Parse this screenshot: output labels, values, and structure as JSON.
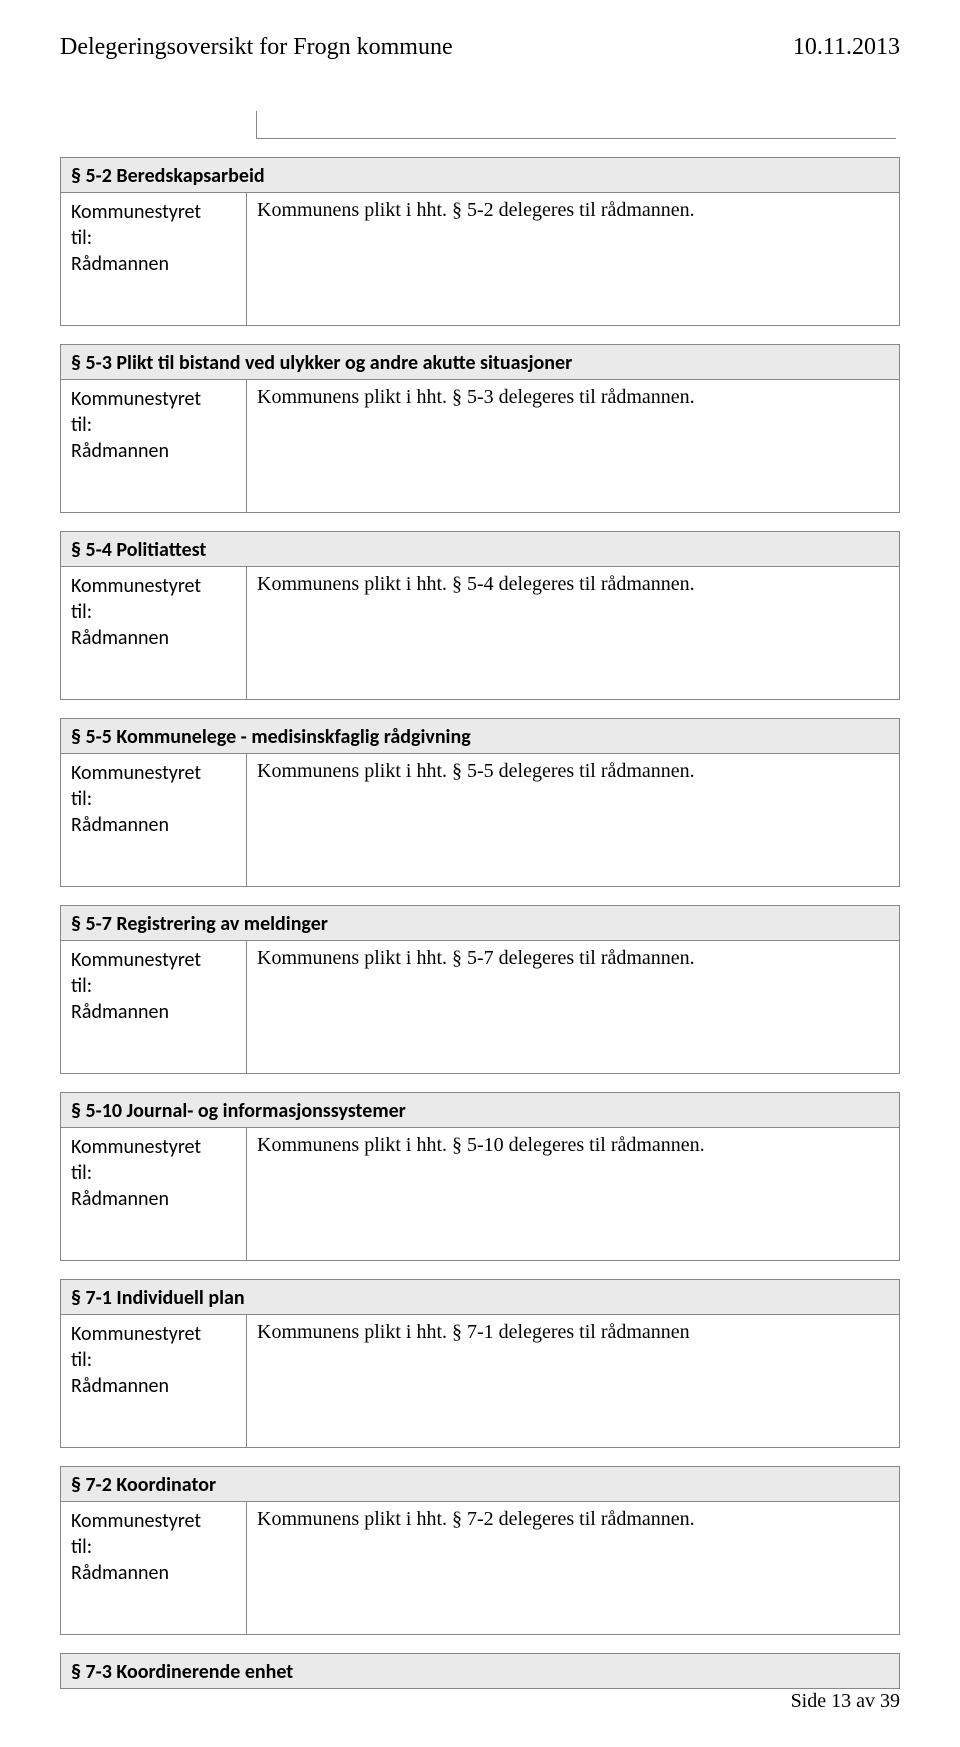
{
  "header": {
    "title": "Delegeringsoversikt for Frogn kommune",
    "date": "10.11.2013"
  },
  "sections": [
    {
      "title": "§ 5-2 Beredskapsarbeid",
      "from1": "Kommunestyret",
      "from2": "til:",
      "from3": "Rådmannen",
      "desc": "Kommunens plikt i hht. § 5-2 delegeres til rådmannen."
    },
    {
      "title": "§ 5-3 Plikt til bistand ved ulykker og andre akutte situasjoner",
      "from1": "Kommunestyret",
      "from2": "til:",
      "from3": "Rådmannen",
      "desc": "Kommunens plikt i hht. § 5-3 delegeres til rådmannen."
    },
    {
      "title": "§ 5-4 Politiattest",
      "from1": "Kommunestyret",
      "from2": "til:",
      "from3": "Rådmannen",
      "desc": "Kommunens plikt i hht. § 5-4 delegeres til rådmannen."
    },
    {
      "title": "§ 5-5 Kommunelege - medisinskfaglig rådgivning",
      "from1": "Kommunestyret",
      "from2": "til:",
      "from3": "Rådmannen",
      "desc": "Kommunens plikt i hht. § 5-5 delegeres til rådmannen."
    },
    {
      "title": "§ 5-7 Registrering av meldinger",
      "from1": "Kommunestyret",
      "from2": "til:",
      "from3": "Rådmannen",
      "desc": "Kommunens plikt i hht. § 5-7 delegeres til rådmannen."
    },
    {
      "title": "§ 5-10 Journal- og informasjonssystemer",
      "from1": "Kommunestyret",
      "from2": "til:",
      "from3": "Rådmannen",
      "desc": "Kommunens plikt i hht. § 5-10 delegeres til rådmannen."
    },
    {
      "title": "§ 7-1 Individuell plan",
      "from1": "Kommunestyret",
      "from2": "til:",
      "from3": "Rådmannen",
      "desc": "Kommunens plikt i hht. § 7-1 delegeres til rådmannen"
    },
    {
      "title": "§ 7-2 Koordinator",
      "from1": "Kommunestyret",
      "from2": "til:",
      "from3": "Rådmannen",
      "desc": "Kommunens plikt i hht. § 7-2 delegeres til rådmannen."
    }
  ],
  "last_section_title": "§ 7-3 Koordinerende enhet",
  "footer": "Side 13 av 39"
}
